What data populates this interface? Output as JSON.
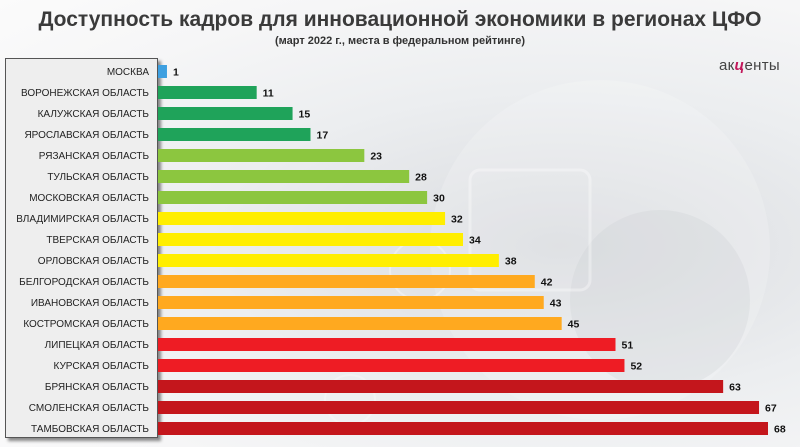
{
  "header": {
    "title": "Доступность кадров для инновационной экономики в регионах ЦФО",
    "subtitle": "(март 2022 г., места в федеральном рейтинге)"
  },
  "logo": {
    "part1": "ак",
    "accent": "ц",
    "part2": "енты"
  },
  "chart_data": {
    "type": "bar",
    "orientation": "horizontal",
    "title": "Доступность кадров для инновационной экономики в регионах ЦФО",
    "subtitle": "(март 2022 г., места в федеральном рейтинге)",
    "categories": [
      "МОСКВА",
      "ВОРОНЕЖСКАЯ ОБЛАСТЬ",
      "КАЛУЖСКАЯ ОБЛАСТЬ",
      "ЯРОСЛАВСКАЯ ОБЛАСТЬ",
      "РЯЗАНСКАЯ ОБЛАСТЬ",
      "ТУЛЬСКАЯ ОБЛАСТЬ",
      "МОСКОВСКАЯ ОБЛАСТЬ",
      "ВЛАДИМИРСКАЯ ОБЛАСТЬ",
      "ТВЕРСКАЯ ОБЛАСТЬ",
      "ОРЛОВСКАЯ ОБЛАСТЬ",
      "БЕЛГОРОДСКАЯ ОБЛАСТЬ",
      "ИВАНОВСКАЯ ОБЛАСТЬ",
      "КОСТРОМСКАЯ ОБЛАСТЬ",
      "ЛИПЕЦКАЯ ОБЛАСТЬ",
      "КУРСКАЯ ОБЛАСТЬ",
      "БРЯНСКАЯ ОБЛАСТЬ",
      "СМОЛЕНСКАЯ ОБЛАСТЬ",
      "ТАМБОВСКАЯ ОБЛАСТЬ"
    ],
    "values": [
      1,
      11,
      15,
      17,
      23,
      28,
      30,
      32,
      34,
      38,
      42,
      43,
      45,
      51,
      52,
      63,
      67,
      68
    ],
    "colors": [
      "#3d9fe0",
      "#1fa35a",
      "#1fa35a",
      "#1fa35a",
      "#8cc63f",
      "#8cc63f",
      "#8cc63f",
      "#ffee00",
      "#ffee00",
      "#ffee00",
      "#ffa91f",
      "#ffa91f",
      "#ffa91f",
      "#ee1c24",
      "#ee1c24",
      "#c4161c",
      "#c4161c",
      "#c4161c"
    ],
    "xlim": [
      0,
      68
    ],
    "grid": false,
    "legend": "none"
  }
}
